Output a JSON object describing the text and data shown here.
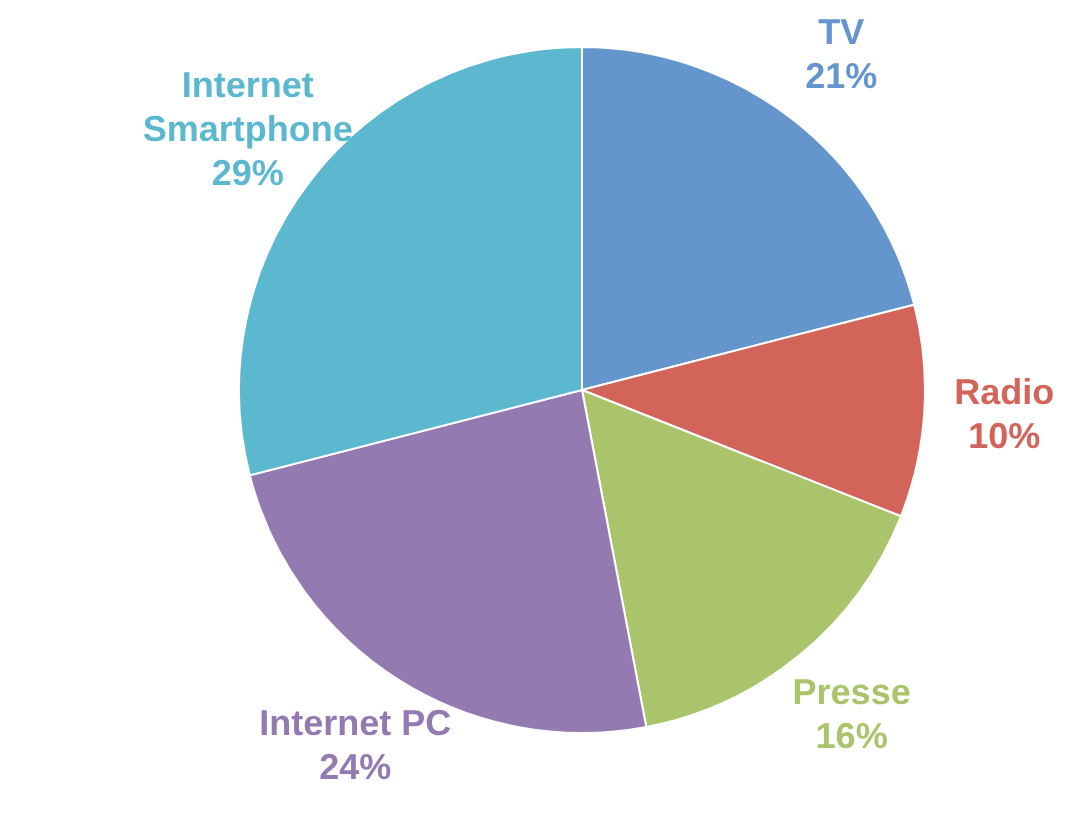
{
  "chart_data": {
    "type": "pie",
    "categories": [
      "TV",
      "Radio",
      "Presse",
      "Internet PC",
      "Internet Smartphone"
    ],
    "values": [
      21,
      10,
      16,
      24,
      29
    ],
    "value_labels": [
      "21%",
      "10%",
      "16%",
      "24%",
      "29%"
    ],
    "colors": [
      "#6495cd",
      "#d2645a",
      "#a9c46a",
      "#937bb2",
      "#5bb8cf"
    ],
    "legend": false
  }
}
